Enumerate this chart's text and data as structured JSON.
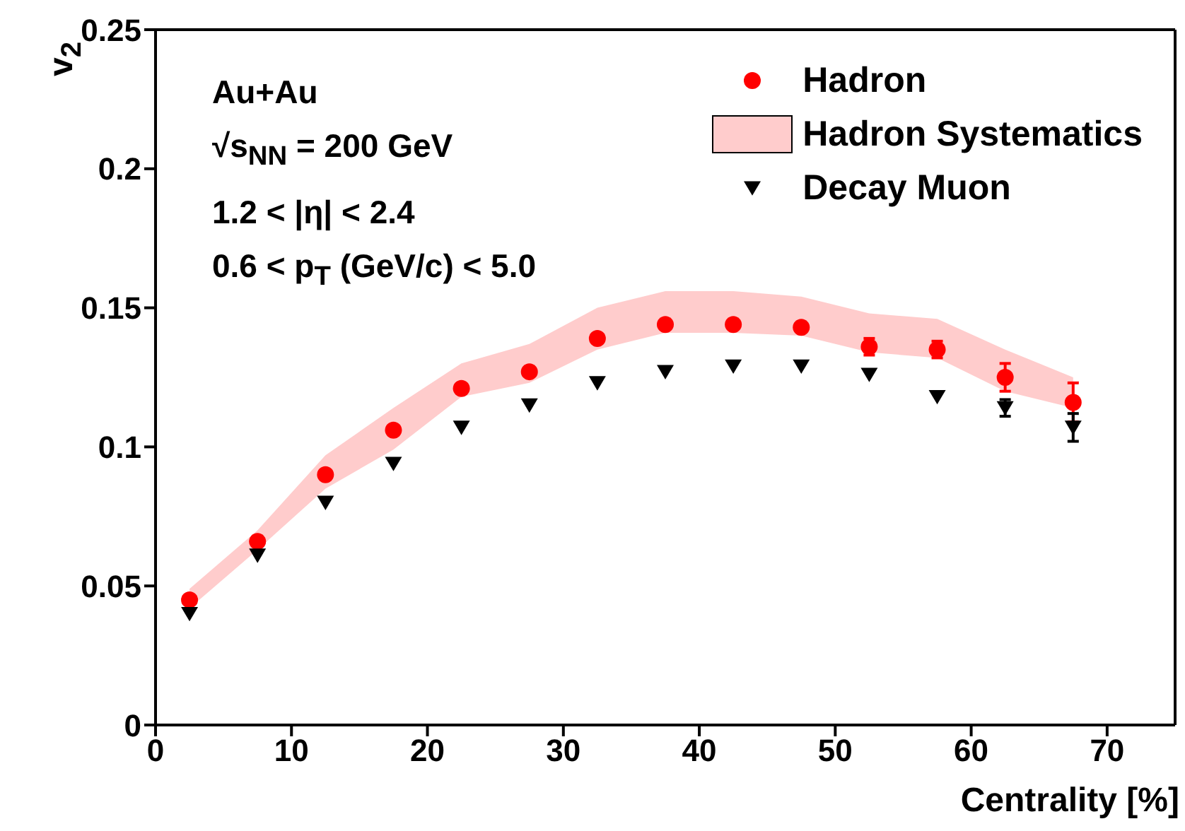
{
  "chart_data": {
    "type": "scatter",
    "xlabel": "Centrality [%]",
    "ylabel": "v$_{2}$",
    "x": [
      2.5,
      7.5,
      12.5,
      17.5,
      22.5,
      27.5,
      32.5,
      37.5,
      42.5,
      47.5,
      52.5,
      57.5,
      62.5,
      67.5
    ],
    "series": [
      {
        "name": "Hadron",
        "color": "#ff0000",
        "marker": "circle",
        "values": [
          0.045,
          0.066,
          0.09,
          0.106,
          0.121,
          0.127,
          0.139,
          0.144,
          0.144,
          0.143,
          0.136,
          0.135,
          0.125,
          0.116
        ],
        "errors": [
          null,
          null,
          null,
          null,
          null,
          null,
          null,
          null,
          null,
          null,
          0.003,
          0.003,
          0.005,
          0.007
        ],
        "lower": [
          0.042,
          0.063,
          0.085,
          0.099,
          0.118,
          0.123,
          0.135,
          0.141,
          0.141,
          0.14,
          0.134,
          0.132,
          0.12,
          0.114
        ],
        "upper": [
          0.049,
          0.07,
          0.097,
          0.114,
          0.13,
          0.137,
          0.15,
          0.156,
          0.156,
          0.154,
          0.148,
          0.146,
          0.135,
          0.125
        ]
      },
      {
        "name": "Decay Muon",
        "color": "#000000",
        "marker": "triangle",
        "values": [
          0.04,
          0.061,
          0.08,
          0.094,
          0.107,
          0.115,
          0.123,
          0.127,
          0.129,
          0.129,
          0.126,
          0.118,
          0.114,
          0.107
        ],
        "errors": [
          null,
          null,
          null,
          null,
          null,
          null,
          null,
          null,
          null,
          null,
          null,
          null,
          0.003,
          0.005
        ]
      }
    ],
    "annotations": [
      "Au+Au",
      "√s$_{NN}$ = 200 GeV",
      "1.2 < |η| < 2.4",
      "0.6 < p$_{T}$ (GeV/c) < 5.0",
      "Hadron Systematics"
    ],
    "xlim": [
      0,
      75
    ],
    "xticks": [
      0,
      10,
      20,
      30,
      40,
      50,
      60,
      70
    ],
    "ylim": [
      0,
      0.25
    ],
    "yticks": [
      0,
      0.05,
      0.1,
      0.15,
      0.2,
      0.25
    ],
    "legend": "top right"
  }
}
